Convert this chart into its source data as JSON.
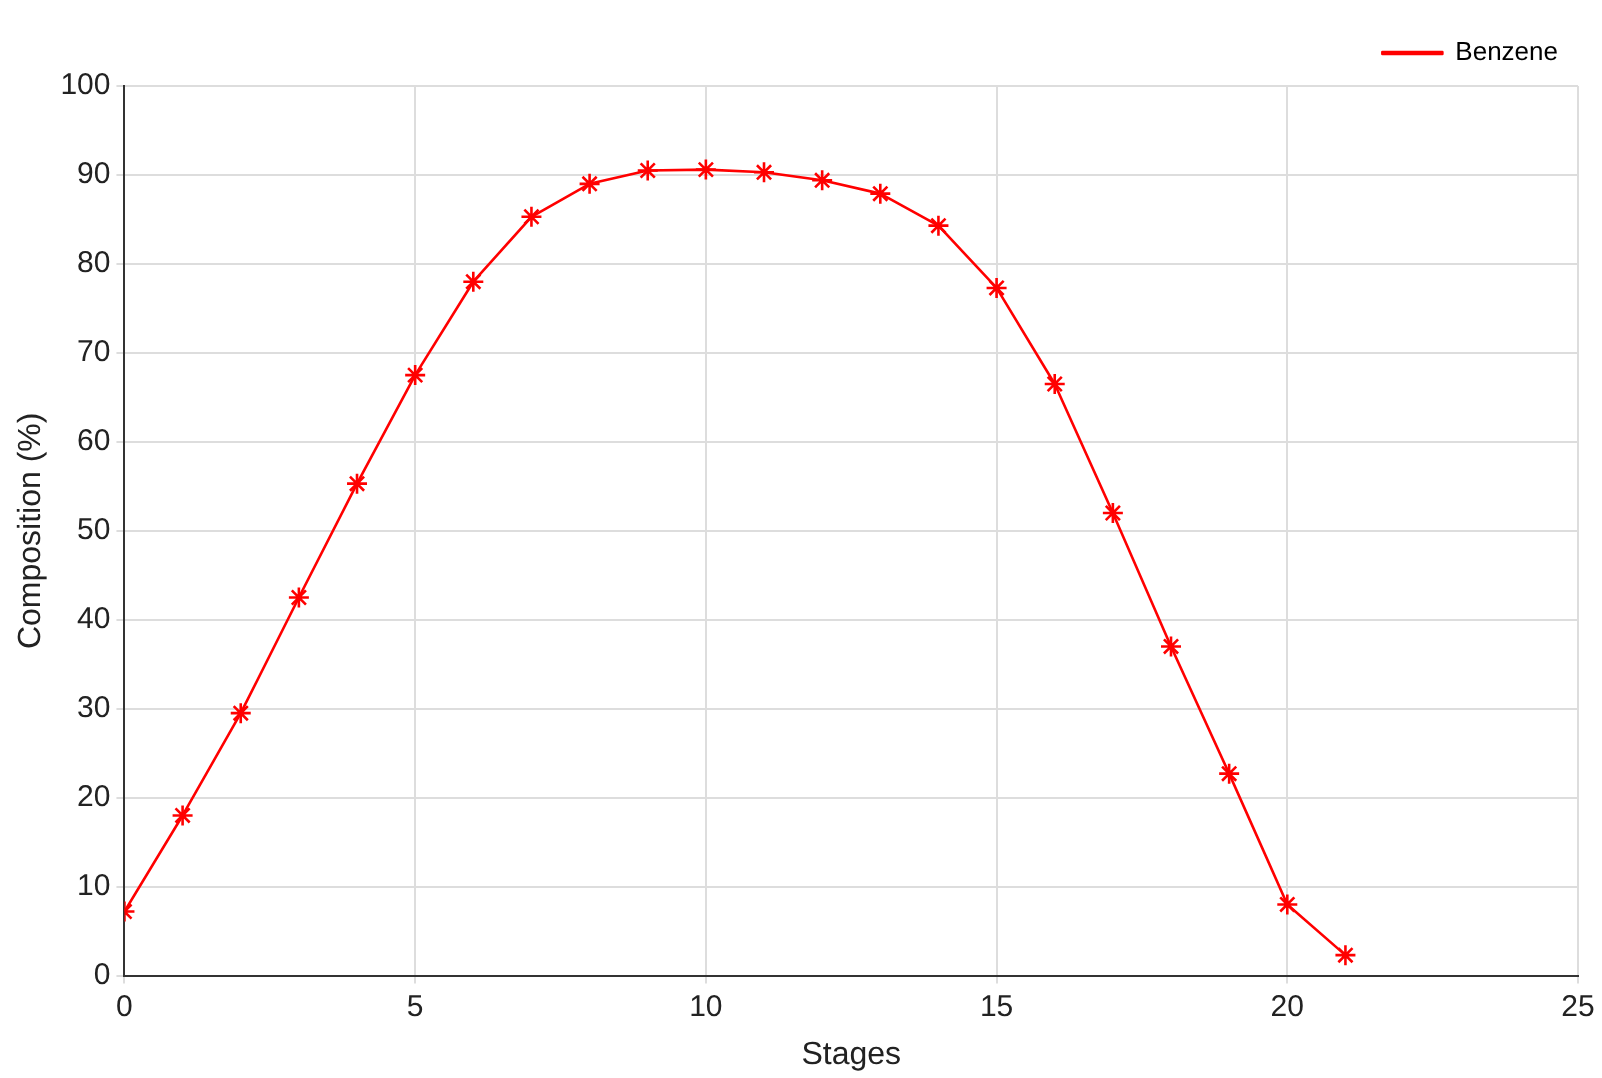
{
  "chart_data": {
    "type": "line",
    "xlabel": "Stages",
    "ylabel": "Composition (%)",
    "x": [
      0,
      1,
      2,
      3,
      4,
      5,
      6,
      7,
      8,
      9,
      10,
      11,
      12,
      13,
      14,
      15,
      16,
      17,
      18,
      19,
      20,
      21
    ],
    "series": [
      {
        "name": "Benzene",
        "color": "#ff0000",
        "values": [
          7.2,
          18,
          29.5,
          42.5,
          55.3,
          67.5,
          78,
          85.3,
          89,
          90.5,
          90.6,
          90.3,
          89.4,
          87.9,
          84.3,
          77.3,
          66.5,
          52,
          37,
          22.7,
          8,
          2.3
        ]
      }
    ],
    "xlim": [
      0,
      25
    ],
    "xticks": [
      0,
      5,
      10,
      15,
      20,
      25
    ],
    "ylim": [
      0,
      100
    ],
    "yticks": [
      0,
      10,
      20,
      30,
      40,
      50,
      60,
      70,
      80,
      90,
      100
    ],
    "grid": true,
    "legend": "top right",
    "marker": "cross",
    "line_style": "solid"
  }
}
